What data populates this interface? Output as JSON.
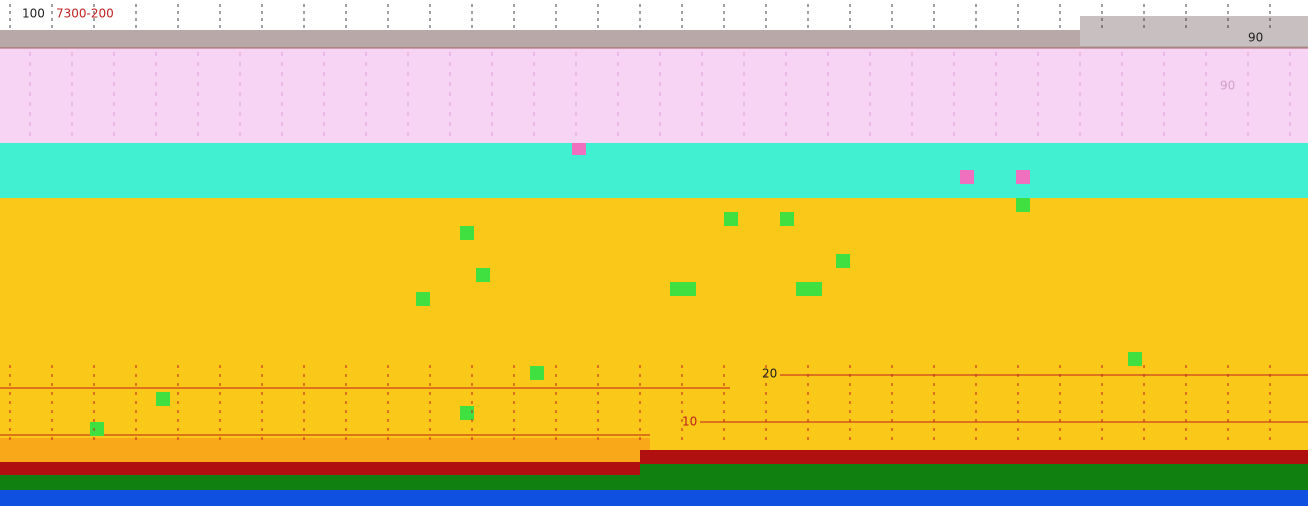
{
  "labels": {
    "top_left": "100",
    "range": "7300-200",
    "right_top": "90",
    "right_mid": "90",
    "mid": "20",
    "low": "10"
  }
}
